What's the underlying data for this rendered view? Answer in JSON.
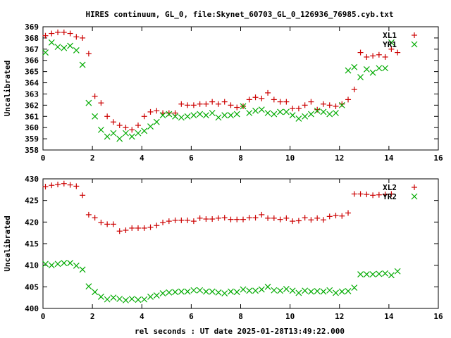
{
  "title": "HIRES continuum, GL_0, file:Skynet_60703_GL_0_126936_76985.cyb.txt",
  "xlabel": "rel seconds : UT date 2025-01-28T13:49:22.000",
  "colors": {
    "red": "#cc0000",
    "green": "#00aa00"
  },
  "chart_data": [
    {
      "type": "scatter",
      "ylabel": "Uncalibrated",
      "xlim": [
        0,
        16
      ],
      "ylim": [
        358,
        369
      ],
      "xticks": [
        "0",
        "2",
        "4",
        "6",
        "8",
        "10",
        "12",
        "14",
        "16"
      ],
      "yticks": [
        "358",
        "359",
        "360",
        "361",
        "362",
        "363",
        "364",
        "365",
        "366",
        "367",
        "368",
        "369"
      ],
      "legend_position": "top-right",
      "series": [
        {
          "name": "XL1",
          "color": "#cc0000",
          "marker": "plus",
          "points": [
            [
              0.1,
              368.2
            ],
            [
              0.35,
              368.4
            ],
            [
              0.6,
              368.5
            ],
            [
              0.85,
              368.5
            ],
            [
              1.1,
              368.4
            ],
            [
              1.35,
              368.1
            ],
            [
              1.6,
              368.0
            ],
            [
              1.85,
              366.6
            ],
            [
              2.1,
              362.8
            ],
            [
              2.35,
              362.2
            ],
            [
              2.6,
              361.0
            ],
            [
              2.85,
              360.5
            ],
            [
              3.1,
              360.2
            ],
            [
              3.35,
              360.0
            ],
            [
              3.6,
              359.8
            ],
            [
              3.85,
              360.2
            ],
            [
              4.1,
              361.0
            ],
            [
              4.35,
              361.4
            ],
            [
              4.6,
              361.5
            ],
            [
              4.85,
              361.3
            ],
            [
              5.1,
              361.3
            ],
            [
              5.35,
              361.3
            ],
            [
              5.6,
              362.1
            ],
            [
              5.85,
              362.0
            ],
            [
              6.1,
              362.0
            ],
            [
              6.35,
              362.1
            ],
            [
              6.6,
              362.1
            ],
            [
              6.85,
              362.3
            ],
            [
              7.1,
              362.1
            ],
            [
              7.35,
              362.3
            ],
            [
              7.6,
              362.0
            ],
            [
              7.85,
              361.8
            ],
            [
              8.1,
              361.9
            ],
            [
              8.35,
              362.5
            ],
            [
              8.6,
              362.7
            ],
            [
              8.85,
              362.6
            ],
            [
              9.1,
              363.1
            ],
            [
              9.35,
              362.5
            ],
            [
              9.6,
              362.3
            ],
            [
              9.85,
              362.3
            ],
            [
              10.1,
              361.7
            ],
            [
              10.35,
              361.7
            ],
            [
              10.6,
              362.0
            ],
            [
              10.85,
              362.3
            ],
            [
              11.1,
              361.6
            ],
            [
              11.35,
              362.1
            ],
            [
              11.6,
              362.0
            ],
            [
              11.85,
              361.9
            ],
            [
              12.1,
              362.1
            ],
            [
              12.35,
              362.5
            ],
            [
              12.6,
              363.4
            ],
            [
              12.85,
              366.7
            ],
            [
              13.1,
              366.3
            ],
            [
              13.35,
              366.4
            ],
            [
              13.6,
              366.5
            ],
            [
              13.85,
              366.3
            ],
            [
              14.1,
              367.0
            ],
            [
              14.35,
              366.7
            ]
          ]
        },
        {
          "name": "YR1",
          "color": "#00aa00",
          "marker": "x",
          "points": [
            [
              0.1,
              366.7
            ],
            [
              0.35,
              367.6
            ],
            [
              0.6,
              367.2
            ],
            [
              0.85,
              367.1
            ],
            [
              1.1,
              367.3
            ],
            [
              1.35,
              366.9
            ],
            [
              1.6,
              365.6
            ],
            [
              1.85,
              362.2
            ],
            [
              2.1,
              361.0
            ],
            [
              2.35,
              359.8
            ],
            [
              2.6,
              359.2
            ],
            [
              2.85,
              359.5
            ],
            [
              3.1,
              359.0
            ],
            [
              3.35,
              359.5
            ],
            [
              3.6,
              359.2
            ],
            [
              3.85,
              359.5
            ],
            [
              4.1,
              359.7
            ],
            [
              4.35,
              360.1
            ],
            [
              4.6,
              360.5
            ],
            [
              4.85,
              361.1
            ],
            [
              5.1,
              361.2
            ],
            [
              5.35,
              361.0
            ],
            [
              5.6,
              360.9
            ],
            [
              5.85,
              361.0
            ],
            [
              6.1,
              361.1
            ],
            [
              6.35,
              361.2
            ],
            [
              6.6,
              361.1
            ],
            [
              6.85,
              361.3
            ],
            [
              7.1,
              360.9
            ],
            [
              7.35,
              361.1
            ],
            [
              7.6,
              361.1
            ],
            [
              7.85,
              361.2
            ],
            [
              8.1,
              361.9
            ],
            [
              8.35,
              361.3
            ],
            [
              8.6,
              361.5
            ],
            [
              8.85,
              361.6
            ],
            [
              9.1,
              361.3
            ],
            [
              9.35,
              361.2
            ],
            [
              9.6,
              361.4
            ],
            [
              9.85,
              361.4
            ],
            [
              10.1,
              361.1
            ],
            [
              10.35,
              360.8
            ],
            [
              10.6,
              361.0
            ],
            [
              10.85,
              361.2
            ],
            [
              11.1,
              361.5
            ],
            [
              11.35,
              361.4
            ],
            [
              11.6,
              361.2
            ],
            [
              11.85,
              361.3
            ],
            [
              12.1,
              362.0
            ],
            [
              12.35,
              365.1
            ],
            [
              12.6,
              365.4
            ],
            [
              12.85,
              364.5
            ],
            [
              13.1,
              365.2
            ],
            [
              13.35,
              364.9
            ],
            [
              13.6,
              365.3
            ],
            [
              13.85,
              365.3
            ],
            [
              14.1,
              367.6
            ]
          ]
        }
      ]
    },
    {
      "type": "scatter",
      "ylabel": "Uncalibrated",
      "xlim": [
        0,
        16
      ],
      "ylim": [
        400,
        430
      ],
      "xticks": [
        "0",
        "2",
        "4",
        "6",
        "8",
        "10",
        "12",
        "14",
        "16"
      ],
      "yticks": [
        "400",
        "405",
        "410",
        "415",
        "420",
        "425",
        "430"
      ],
      "legend_position": "top-right",
      "series": [
        {
          "name": "XL2",
          "color": "#cc0000",
          "marker": "plus",
          "points": [
            [
              0.1,
              428.2
            ],
            [
              0.35,
              428.5
            ],
            [
              0.6,
              428.7
            ],
            [
              0.85,
              428.9
            ],
            [
              1.1,
              428.6
            ],
            [
              1.35,
              428.3
            ],
            [
              1.6,
              426.2
            ],
            [
              1.85,
              421.7
            ],
            [
              2.1,
              421.0
            ],
            [
              2.35,
              419.9
            ],
            [
              2.6,
              419.5
            ],
            [
              2.85,
              419.5
            ],
            [
              3.1,
              417.9
            ],
            [
              3.35,
              418.1
            ],
            [
              3.6,
              418.6
            ],
            [
              3.85,
              418.6
            ],
            [
              4.1,
              418.6
            ],
            [
              4.35,
              418.8
            ],
            [
              4.6,
              419.2
            ],
            [
              4.85,
              419.9
            ],
            [
              5.1,
              420.2
            ],
            [
              5.35,
              420.4
            ],
            [
              5.6,
              420.4
            ],
            [
              5.85,
              420.4
            ],
            [
              6.1,
              420.2
            ],
            [
              6.35,
              420.9
            ],
            [
              6.6,
              420.7
            ],
            [
              6.85,
              420.7
            ],
            [
              7.1,
              420.9
            ],
            [
              7.35,
              421.0
            ],
            [
              7.6,
              420.6
            ],
            [
              7.85,
              420.6
            ],
            [
              8.1,
              420.6
            ],
            [
              8.35,
              421.0
            ],
            [
              8.6,
              421.0
            ],
            [
              8.85,
              421.7
            ],
            [
              9.1,
              420.9
            ],
            [
              9.35,
              420.9
            ],
            [
              9.6,
              420.6
            ],
            [
              9.85,
              420.9
            ],
            [
              10.1,
              420.2
            ],
            [
              10.35,
              420.3
            ],
            [
              10.6,
              421.0
            ],
            [
              10.85,
              420.5
            ],
            [
              11.1,
              420.9
            ],
            [
              11.35,
              420.5
            ],
            [
              11.6,
              421.3
            ],
            [
              11.85,
              421.5
            ],
            [
              12.1,
              421.4
            ],
            [
              12.35,
              422.1
            ],
            [
              12.6,
              426.5
            ],
            [
              12.85,
              426.5
            ],
            [
              13.1,
              426.4
            ],
            [
              13.35,
              426.2
            ],
            [
              13.6,
              426.3
            ],
            [
              13.85,
              426.4
            ],
            [
              14.1,
              426.5
            ]
          ]
        },
        {
          "name": "YR2",
          "color": "#00aa00",
          "marker": "x",
          "points": [
            [
              0.1,
              410.3
            ],
            [
              0.35,
              410.0
            ],
            [
              0.6,
              410.3
            ],
            [
              0.85,
              410.5
            ],
            [
              1.1,
              410.5
            ],
            [
              1.35,
              409.9
            ],
            [
              1.6,
              409.0
            ],
            [
              1.85,
              405.1
            ],
            [
              2.1,
              403.8
            ],
            [
              2.35,
              402.7
            ],
            [
              2.6,
              402.1
            ],
            [
              2.85,
              402.5
            ],
            [
              3.1,
              402.2
            ],
            [
              3.35,
              401.9
            ],
            [
              3.6,
              402.2
            ],
            [
              3.85,
              402.0
            ],
            [
              4.1,
              402.1
            ],
            [
              4.35,
              402.7
            ],
            [
              4.6,
              403.0
            ],
            [
              4.85,
              403.5
            ],
            [
              5.1,
              403.7
            ],
            [
              5.35,
              403.8
            ],
            [
              5.6,
              403.9
            ],
            [
              5.85,
              403.9
            ],
            [
              6.1,
              404.2
            ],
            [
              6.35,
              404.2
            ],
            [
              6.6,
              403.9
            ],
            [
              6.85,
              403.9
            ],
            [
              7.1,
              403.7
            ],
            [
              7.35,
              403.5
            ],
            [
              7.6,
              403.9
            ],
            [
              7.85,
              403.8
            ],
            [
              8.1,
              404.4
            ],
            [
              8.35,
              404.1
            ],
            [
              8.6,
              404.1
            ],
            [
              8.85,
              404.4
            ],
            [
              9.1,
              405.0
            ],
            [
              9.35,
              404.2
            ],
            [
              9.6,
              404.1
            ],
            [
              9.85,
              404.5
            ],
            [
              10.1,
              404.1
            ],
            [
              10.35,
              403.6
            ],
            [
              10.6,
              404.1
            ],
            [
              10.85,
              403.9
            ],
            [
              11.1,
              404.0
            ],
            [
              11.35,
              403.9
            ],
            [
              11.6,
              404.2
            ],
            [
              11.85,
              403.6
            ],
            [
              12.1,
              403.9
            ],
            [
              12.35,
              404.0
            ],
            [
              12.6,
              404.8
            ],
            [
              12.85,
              407.9
            ],
            [
              13.1,
              407.9
            ],
            [
              13.35,
              407.9
            ],
            [
              13.6,
              408.0
            ],
            [
              13.85,
              408.1
            ],
            [
              14.1,
              407.7
            ],
            [
              14.35,
              408.6
            ]
          ]
        }
      ]
    }
  ]
}
